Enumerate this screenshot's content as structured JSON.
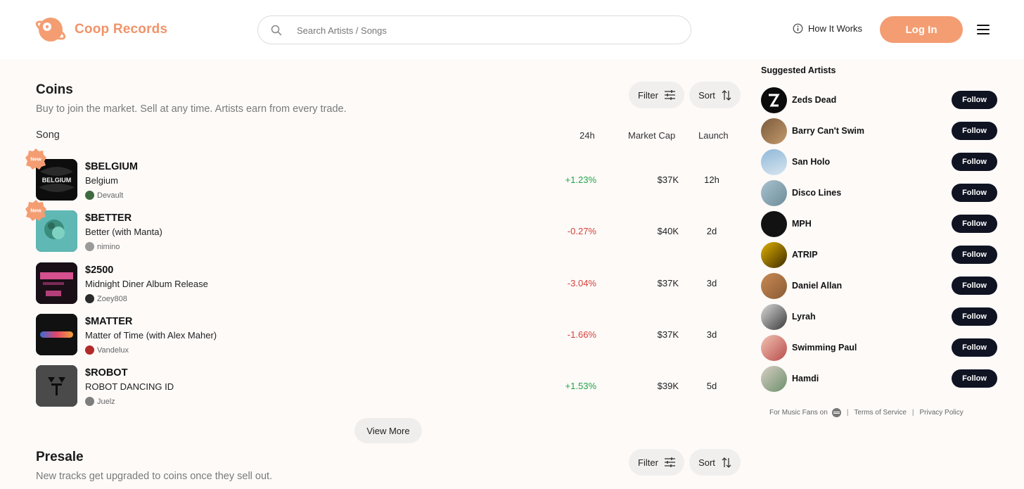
{
  "brand": {
    "name": "Coop Records",
    "accent": "#f49d72"
  },
  "search": {
    "placeholder": "Search Artists / Songs"
  },
  "nav": {
    "how_it_works": "How It Works",
    "login": "Log In"
  },
  "coins": {
    "title": "Coins",
    "subtitle": "Buy to join the market. Sell at any time. Artists earn from every trade.",
    "filter_label": "Filter",
    "sort_label": "Sort",
    "columns": {
      "song": "Song",
      "change": "24h",
      "market_cap": "Market Cap",
      "launch": "Launch"
    },
    "new_badge": "New",
    "rows": [
      {
        "ticker": "$BELGIUM",
        "song": "Belgium",
        "artist": "Devault",
        "change": "+1.23%",
        "direction": "up",
        "market_cap": "$37K",
        "launch": "12h",
        "is_new": true
      },
      {
        "ticker": "$BETTER",
        "song": "Better (with Manta)",
        "artist": "nimino",
        "change": "-0.27%",
        "direction": "down",
        "market_cap": "$40K",
        "launch": "2d",
        "is_new": true
      },
      {
        "ticker": "$2500",
        "song": "Midnight Diner Album Release",
        "artist": "Zoey808",
        "change": "-3.04%",
        "direction": "down",
        "market_cap": "$37K",
        "launch": "3d",
        "is_new": false
      },
      {
        "ticker": "$MATTER",
        "song": "Matter of Time (with Alex Maher)",
        "artist": "Vandelux",
        "change": "-1.66%",
        "direction": "down",
        "market_cap": "$37K",
        "launch": "3d",
        "is_new": false
      },
      {
        "ticker": "$ROBOT",
        "song": "ROBOT DANCING ID",
        "artist": "Juelz",
        "change": "+1.53%",
        "direction": "up",
        "market_cap": "$39K",
        "launch": "5d",
        "is_new": false
      }
    ],
    "view_more": "View More"
  },
  "presale": {
    "title": "Presale",
    "subtitle": "New tracks get upgraded to coins once they sell out.",
    "filter_label": "Filter",
    "sort_label": "Sort"
  },
  "suggested": {
    "title": "Suggested Artists",
    "follow_label": "Follow",
    "artists": [
      {
        "name": "Zeds Dead"
      },
      {
        "name": "Barry Can't Swim"
      },
      {
        "name": "San Holo"
      },
      {
        "name": "Disco Lines"
      },
      {
        "name": "MPH"
      },
      {
        "name": "ATRIP"
      },
      {
        "name": "Daniel Allan"
      },
      {
        "name": "Lyrah"
      },
      {
        "name": "Swimming Paul"
      },
      {
        "name": "Hamdi"
      }
    ]
  },
  "footer": {
    "fans": "For Music Fans on",
    "separator": "|",
    "terms": "Terms of Service",
    "privacy": "Privacy Policy"
  }
}
